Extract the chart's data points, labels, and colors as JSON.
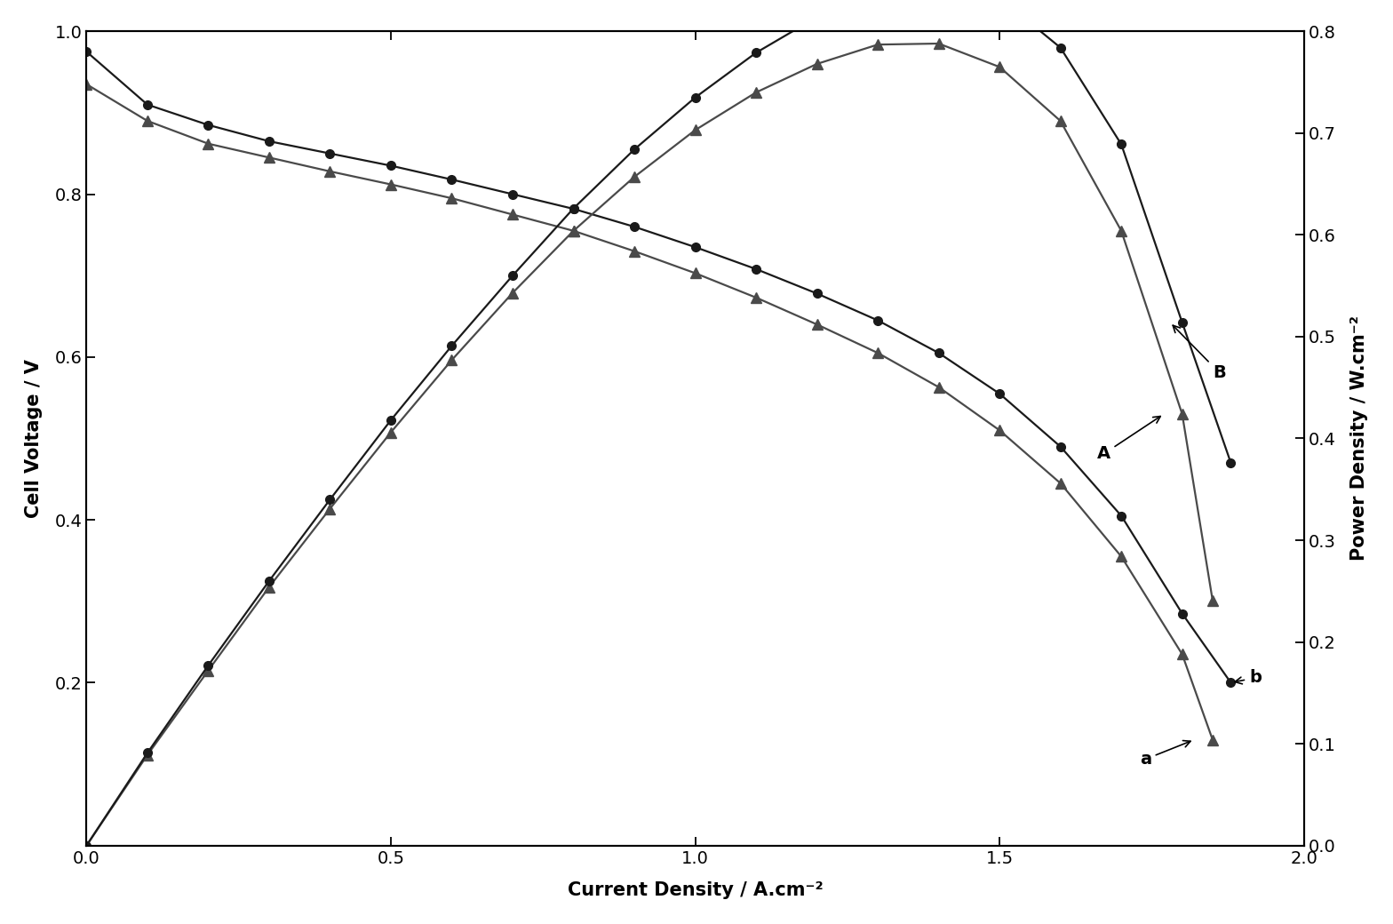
{
  "xlabel": "Current Density / A.cm⁻²",
  "ylabel_left": "Cell Voltage / V",
  "ylabel_right": "Power Density / W.cm⁻²",
  "xlim": [
    0.0,
    2.0
  ],
  "ylim_left": [
    0.0,
    1.0
  ],
  "ylim_right": [
    0.0,
    0.8
  ],
  "xticks": [
    0.0,
    0.5,
    1.0,
    1.5,
    2.0
  ],
  "yticks_left": [
    0.2,
    0.4,
    0.6,
    0.8,
    1.0
  ],
  "yticks_right": [
    0.0,
    0.1,
    0.2,
    0.3,
    0.4,
    0.5,
    0.6,
    0.7,
    0.8
  ],
  "curve_a_x": [
    0.0,
    0.1,
    0.2,
    0.3,
    0.4,
    0.5,
    0.6,
    0.7,
    0.8,
    0.9,
    1.0,
    1.1,
    1.2,
    1.3,
    1.4,
    1.5,
    1.6,
    1.7,
    1.8,
    1.85
  ],
  "curve_a_y": [
    0.935,
    0.89,
    0.862,
    0.845,
    0.828,
    0.812,
    0.795,
    0.775,
    0.755,
    0.73,
    0.703,
    0.673,
    0.64,
    0.605,
    0.563,
    0.51,
    0.445,
    0.355,
    0.235,
    0.13
  ],
  "curve_b_x": [
    0.0,
    0.1,
    0.2,
    0.3,
    0.4,
    0.5,
    0.6,
    0.7,
    0.8,
    0.9,
    1.0,
    1.1,
    1.2,
    1.3,
    1.4,
    1.5,
    1.6,
    1.7,
    1.8,
    1.88
  ],
  "curve_b_y": [
    0.975,
    0.91,
    0.885,
    0.865,
    0.85,
    0.835,
    0.818,
    0.8,
    0.782,
    0.76,
    0.735,
    0.708,
    0.678,
    0.645,
    0.605,
    0.555,
    0.49,
    0.405,
    0.285,
    0.2
  ],
  "curve_A_x": [
    0.0,
    0.1,
    0.2,
    0.3,
    0.4,
    0.5,
    0.6,
    0.7,
    0.8,
    0.9,
    1.0,
    1.1,
    1.2,
    1.3,
    1.4,
    1.5,
    1.6,
    1.7,
    1.8,
    1.85
  ],
  "curve_A_y": [
    0.0,
    0.089,
    0.172,
    0.254,
    0.331,
    0.406,
    0.477,
    0.543,
    0.604,
    0.657,
    0.703,
    0.74,
    0.768,
    0.787,
    0.788,
    0.765,
    0.712,
    0.604,
    0.424,
    0.241
  ],
  "curve_B_x": [
    0.0,
    0.1,
    0.2,
    0.3,
    0.4,
    0.5,
    0.6,
    0.7,
    0.8,
    0.9,
    1.0,
    1.1,
    1.2,
    1.3,
    1.4,
    1.5,
    1.6,
    1.7,
    1.8,
    1.88
  ],
  "curve_B_y": [
    0.0,
    0.091,
    0.177,
    0.26,
    0.34,
    0.418,
    0.491,
    0.56,
    0.626,
    0.684,
    0.735,
    0.779,
    0.814,
    0.839,
    0.847,
    0.833,
    0.784,
    0.689,
    0.514,
    0.376
  ],
  "color_dark": "#1a1a1a",
  "color_mid": "#4a4a4a",
  "linewidth": 1.6,
  "markersize_circle": 7,
  "markersize_triangle": 8,
  "xlabel_fontsize": 15,
  "ylabel_fontsize": 15,
  "tick_fontsize": 14,
  "annot_fontsize": 14,
  "figsize": [
    15.68,
    10.4
  ],
  "dpi": 100
}
